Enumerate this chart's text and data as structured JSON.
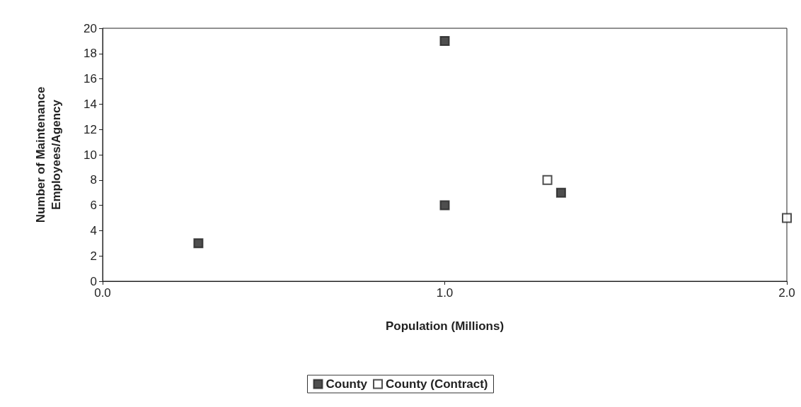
{
  "chart_data": {
    "type": "scatter",
    "xlabel": "Population (Millions)",
    "ylabel": "Number of Maintenance\nEmployees/Agency",
    "marker": "square",
    "grid": false,
    "legend": "bottom",
    "xlim": [
      0,
      2
    ],
    "xticks": [
      {
        "value": 0,
        "label": "0.0"
      },
      {
        "value": 1,
        "label": "1.0"
      },
      {
        "value": 2,
        "label": "2.0"
      }
    ],
    "ylim": [
      0,
      20
    ],
    "yticks": [
      0,
      2,
      4,
      6,
      8,
      10,
      12,
      14,
      16,
      18,
      20
    ],
    "series": [
      {
        "name": "County",
        "color": "#222222",
        "x": [
          0.28,
          1.0,
          1.0,
          1.34
        ],
        "values": [
          3,
          19,
          6,
          7
        ]
      },
      {
        "name": "County (Contract)",
        "color": "#ffffff",
        "x": [
          1.3,
          2.0
        ],
        "values": [
          8,
          5
        ]
      }
    ]
  }
}
